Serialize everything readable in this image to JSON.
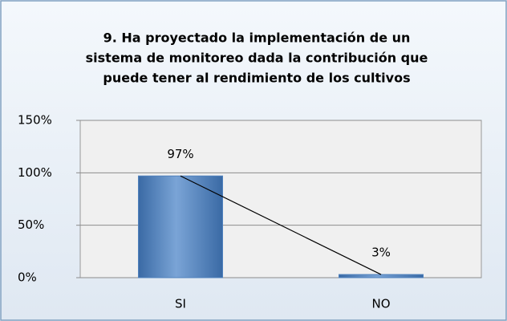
{
  "chart_data": {
    "type": "bar",
    "title": [
      "9. Ha proyectado la implementación de un",
      "sistema de monitoreo dada la contribución que",
      "puede tener al rendimiento de los cultivos"
    ],
    "categories": [
      "SI",
      "NO"
    ],
    "values": [
      97,
      3
    ],
    "value_labels": [
      "97%",
      "3%"
    ],
    "color": "#4f81bd",
    "connecting_line": true,
    "ylim": [
      0,
      150
    ],
    "yticks": [
      {
        "value": 0,
        "label": "0%"
      },
      {
        "value": 50,
        "label": "50%"
      },
      {
        "value": 100,
        "label": "100%"
      },
      {
        "value": 150,
        "label": "150%"
      }
    ],
    "grid": true
  }
}
